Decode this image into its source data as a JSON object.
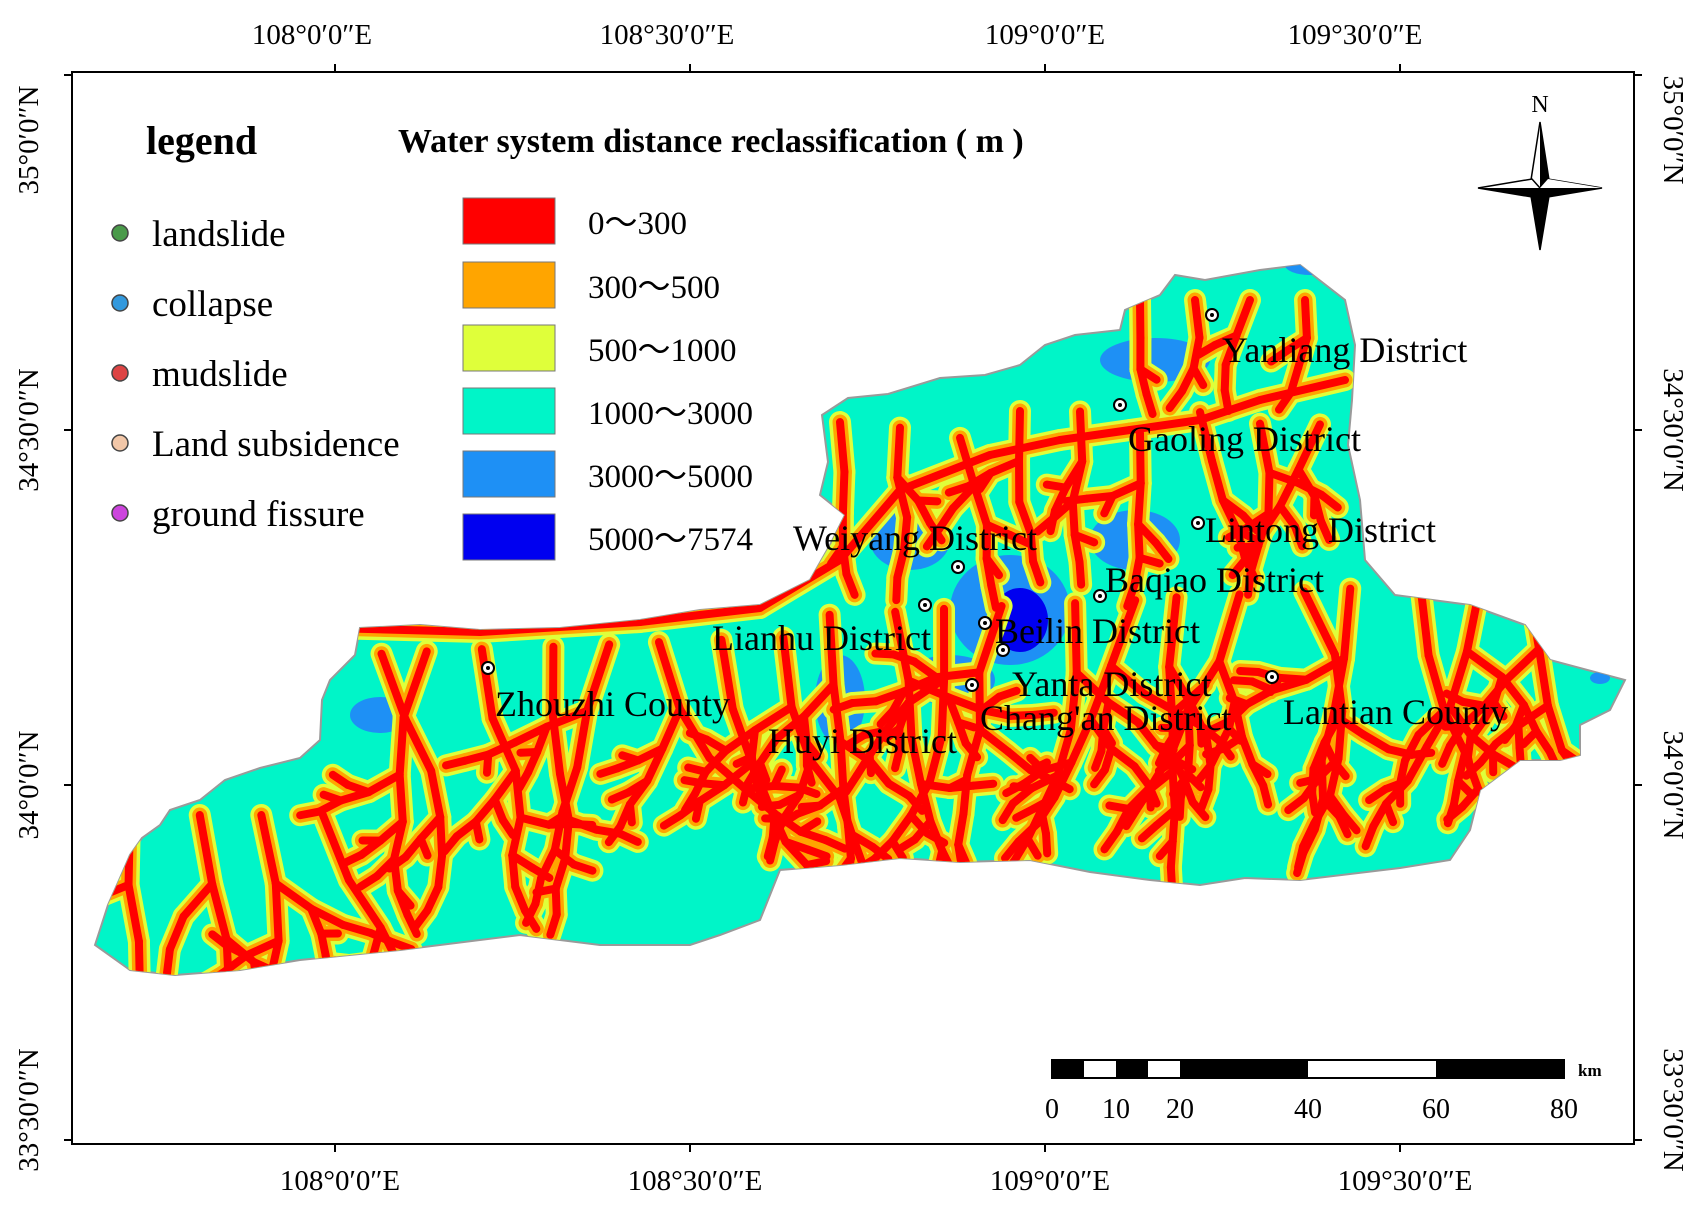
{
  "legend": {
    "title": "legend",
    "hazards": [
      {
        "label": "landslide",
        "color": "#4a9a4a"
      },
      {
        "label": "collapse",
        "color": "#3399dd"
      },
      {
        "label": "mudslide",
        "color": "#dd4444"
      },
      {
        "label": "Land subsidence",
        "color": "#f2c7a8"
      },
      {
        "label": "ground fissure",
        "color": "#cc44dd"
      }
    ]
  },
  "classification": {
    "title": "Water system distance reclassification ( m )",
    "classes": [
      {
        "label": "0～300",
        "color": "#ff0000"
      },
      {
        "label": "300～500",
        "color": "#ffa500"
      },
      {
        "label": "500～1000",
        "color": "#dfff3a"
      },
      {
        "label": "1000～3000",
        "color": "#00f5c8"
      },
      {
        "label": "3000～5000",
        "color": "#1e90f5"
      },
      {
        "label": "5000～7574",
        "color": "#0000f0"
      }
    ]
  },
  "graticule": {
    "top_labels": [
      "108°0′0″E",
      "108°30′0″E",
      "109°0′0″E",
      "109°30′0″E"
    ],
    "bottom_labels": [
      "108°0′0″E",
      "108°30′0″E",
      "109°0′0″E",
      "109°30′0″E"
    ],
    "left_labels": [
      "35°0′0″N",
      "34°30′0″N",
      "34°0′0″N",
      "33°30′0″N"
    ],
    "right_labels": [
      "35°0′0″N",
      "34°30′0″N",
      "34°0′0″N",
      "33°30′0″N"
    ]
  },
  "places": [
    "Yanliang District",
    "Gaoling District",
    "Lintong District",
    "Weiyang District",
    "Baqiao District",
    "Lianhu District",
    "Beilin District",
    "Zhouzhi County",
    "Yanta District",
    "Chang'an District",
    "Lantian County",
    "Huyi District"
  ],
  "scale_bar": {
    "unit": "km",
    "ticks": [
      "0",
      "10",
      "20",
      "40",
      "60",
      "80"
    ]
  },
  "north_arrow": {
    "label": "N"
  }
}
